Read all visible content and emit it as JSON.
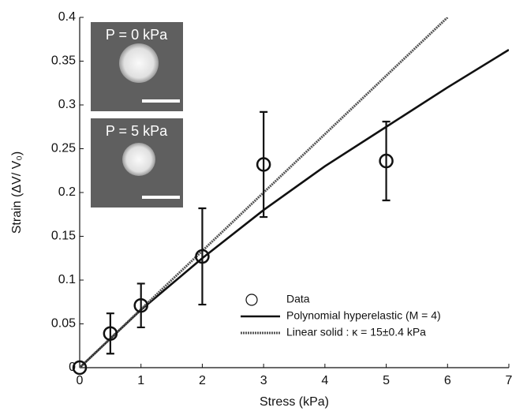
{
  "chart_data": {
    "type": "scatter",
    "xlabel": "Stress (kPa)",
    "ylabel": "Strain (ΔV/ V₀)",
    "xlim": [
      0,
      7
    ],
    "ylim": [
      0,
      0.4
    ],
    "xticks": [
      0,
      1,
      2,
      3,
      4,
      5,
      6,
      7
    ],
    "yticks": [
      0,
      0.05,
      0.1,
      0.15,
      0.2,
      0.25,
      0.3,
      0.35,
      0.4
    ],
    "legend": "lower right",
    "insets": [
      {
        "label": "P = 0 kPa"
      },
      {
        "label": "P = 5 kPa"
      }
    ],
    "series": [
      {
        "name": "Data",
        "style": "marker",
        "color": "#111111",
        "x": [
          0,
          0.5,
          1,
          2,
          3,
          5
        ],
        "values": [
          0,
          0.039,
          0.071,
          0.127,
          0.232,
          0.236
        ],
        "errors": [
          0,
          0.023,
          0.025,
          0.055,
          0.06,
          0.045
        ]
      },
      {
        "name": "Polynomial hyperelastic (M = 4)",
        "style": "solid",
        "color": "#111111",
        "x": [
          0,
          1,
          2,
          3,
          4,
          5,
          6,
          7
        ],
        "values": [
          0,
          0.066,
          0.125,
          0.18,
          0.23,
          0.275,
          0.32,
          0.363
        ]
      },
      {
        "name": "Linear solid : κ = 15±0.4 kPa",
        "style": "dotted",
        "color": "#555555",
        "x": [
          0,
          6
        ],
        "values": [
          0,
          0.4
        ]
      }
    ]
  }
}
